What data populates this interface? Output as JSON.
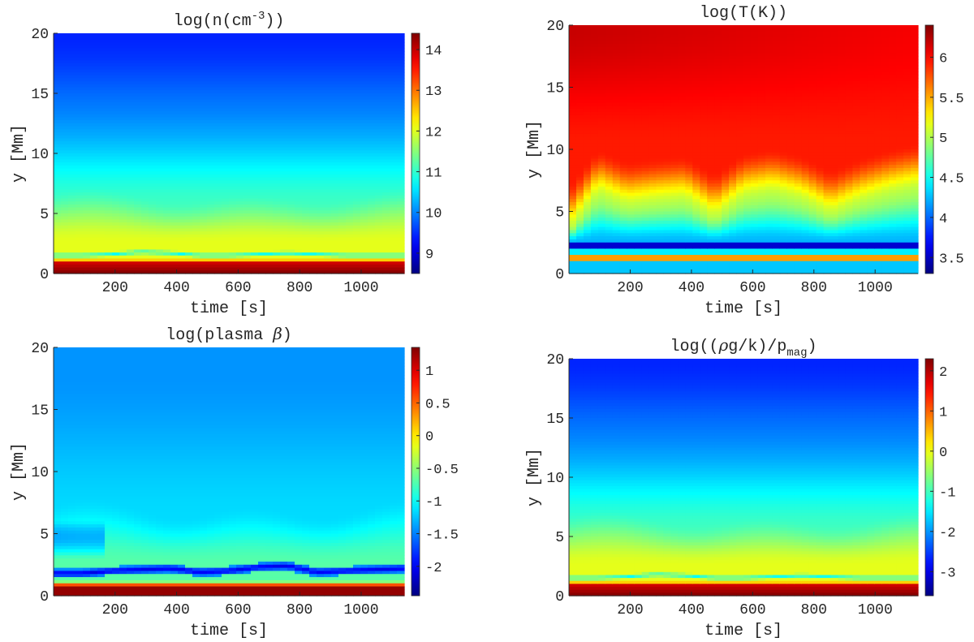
{
  "chart_data": [
    {
      "type": "heatmap",
      "title": "log(n(cm⁻³))",
      "title_base": "log(n(cm",
      "title_sup": "-3",
      "title_end": "))",
      "xlabel": "time [s]",
      "ylabel": "y [Mm]",
      "xlim": [
        0,
        1140
      ],
      "ylim": [
        0,
        20
      ],
      "xticks": [
        200,
        400,
        600,
        800,
        1000
      ],
      "yticks": [
        0,
        5,
        10,
        15,
        20
      ],
      "colormap": "jet",
      "clim": [
        8.5,
        14.4
      ],
      "colorbar_ticks": [
        9,
        10,
        11,
        12,
        13,
        14
      ],
      "profile": "density",
      "bottom_dip_heights": [
        1.5,
        1.5,
        1.6,
        1.8,
        1.7,
        1.5,
        1.5,
        1.6,
        1.7,
        1.6,
        1.5,
        1.5,
        1.5
      ]
    },
    {
      "type": "heatmap",
      "title": "log(T(K))",
      "xlabel": "time [s]",
      "ylabel": "y [Mm]",
      "xlim": [
        0,
        1140
      ],
      "ylim": [
        0,
        20
      ],
      "xticks": [
        200,
        400,
        600,
        800,
        1000
      ],
      "yticks": [
        0,
        5,
        10,
        15,
        20
      ],
      "colormap": "jet",
      "clim": [
        3.3,
        6.4
      ],
      "colorbar_ticks": [
        3.5,
        4,
        4.5,
        5,
        5.5,
        6
      ],
      "colorbar_tick_labels": [
        "3.5",
        "4",
        "4.5",
        "5",
        "5.5",
        "6"
      ],
      "profile": "temperature",
      "transition_region_heights": [
        4.5,
        7.5,
        6.5,
        6.8,
        7.0,
        5.5,
        7.2,
        7.6,
        7.0,
        5.8,
        6.8,
        7.5,
        8.0
      ]
    },
    {
      "type": "heatmap",
      "title": "log(plasma β)",
      "title_base": "log(plasma ",
      "title_greek": "β",
      "title_end": ")",
      "xlabel": "time [s]",
      "ylabel": "y [Mm]",
      "xlim": [
        0,
        1140
      ],
      "ylim": [
        0,
        20
      ],
      "xticks": [
        200,
        400,
        600,
        800,
        1000
      ],
      "yticks": [
        0,
        5,
        10,
        15,
        20
      ],
      "colormap": "jet",
      "clim": [
        -2.45,
        1.35
      ],
      "colorbar_ticks": [
        -2,
        -1.5,
        -1,
        -0.5,
        0,
        0.5,
        1
      ],
      "colorbar_tick_labels": [
        "-2",
        "-1.5",
        "-1",
        "-0.5",
        "0",
        "0.5",
        "1"
      ],
      "profile": "beta",
      "low_beta_band_heights": [
        1.8,
        1.8,
        2.0,
        2.1,
        2.2,
        1.9,
        2.0,
        2.3,
        2.4,
        1.9,
        2.0,
        2.1,
        2.2
      ]
    },
    {
      "type": "heatmap",
      "title": "log((ρg/k)/p_mag)",
      "title_base": "log((",
      "title_greek": "ρ",
      "title_mid": "g/k)/p",
      "title_sub": "mag",
      "title_end": ")",
      "xlabel": "time [s]",
      "ylabel": "y [Mm]",
      "xlim": [
        0,
        1140
      ],
      "ylim": [
        0,
        20
      ],
      "xticks": [
        200,
        400,
        600,
        800,
        1000
      ],
      "yticks": [
        0,
        5,
        10,
        15,
        20
      ],
      "colormap": "jet",
      "clim": [
        -3.6,
        2.3
      ],
      "colorbar_ticks": [
        -3,
        -2,
        -1,
        0,
        1,
        2
      ],
      "colorbar_tick_labels": [
        "-3",
        "-2",
        "-1",
        "0",
        "1",
        "2"
      ],
      "profile": "ratio",
      "bottom_dip_heights": [
        1.5,
        1.5,
        1.6,
        1.8,
        1.7,
        1.5,
        1.5,
        1.6,
        1.7,
        1.6,
        1.5,
        1.5,
        1.5
      ]
    }
  ]
}
